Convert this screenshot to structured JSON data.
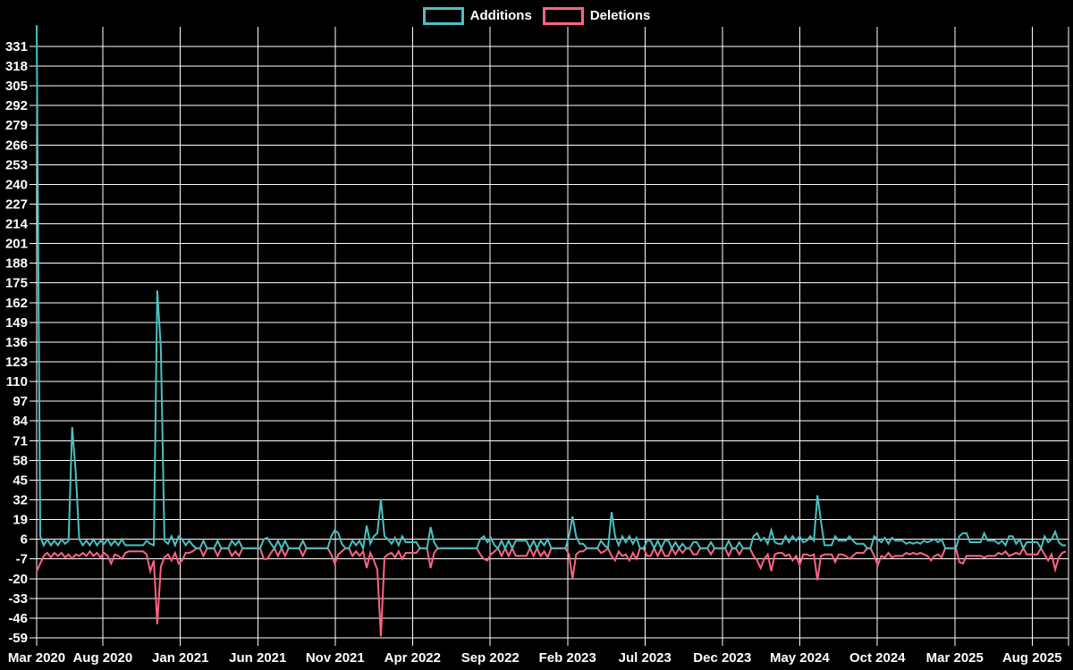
{
  "colors": {
    "background": "#000000",
    "grid": "#ffffff",
    "text": "#ffffff",
    "additions": "#4bc0c0",
    "deletions": "#ff6384"
  },
  "legend": {
    "items": [
      {
        "label": "Additions",
        "color": "#4bc0c0"
      },
      {
        "label": "Deletions",
        "color": "#ff6384"
      }
    ]
  },
  "chart_data": {
    "type": "line",
    "title": "",
    "xlabel": "",
    "ylabel": "",
    "grid": true,
    "legend_position": "top-center",
    "x_unit": "week",
    "weeks": 291,
    "ylim": [
      -59.6,
      344
    ],
    "y_axis": {
      "ticks": [
        331,
        318,
        305,
        292,
        279,
        266,
        253,
        240,
        227,
        214,
        201,
        188,
        175,
        162,
        149,
        136,
        123,
        110,
        97,
        84,
        71,
        58,
        45,
        32,
        19,
        6,
        -7,
        -20,
        -33,
        -46,
        -59
      ],
      "step": 13
    },
    "x_axis": {
      "tick_labels": [
        "Mar 2020",
        "Aug 2020",
        "Jan 2021",
        "Jun 2021",
        "Nov 2021",
        "Apr 2022",
        "Sep 2022",
        "Feb 2023",
        "Jul 2023",
        "Dec 2023",
        "May 2024",
        "Oct 2024",
        "Mar 2025",
        "Aug 2025"
      ],
      "tick_weeks": [
        0,
        18.6,
        40.5,
        62.3,
        84.1,
        105.9,
        127.8,
        149.6,
        171.4,
        193.2,
        215.0,
        236.9,
        258.7,
        280.5
      ]
    },
    "series": [
      {
        "name": "Additions",
        "color": "#4bc0c0",
        "values": [
          345,
          8,
          2,
          6,
          2,
          5,
          2,
          6,
          3,
          5,
          80,
          50,
          6,
          2,
          5,
          2,
          6,
          2,
          5,
          3,
          6,
          2,
          5,
          2,
          6,
          2,
          2,
          2,
          2,
          2,
          2,
          5,
          3,
          2,
          170,
          132,
          5,
          3,
          8,
          2,
          8,
          6,
          2,
          5,
          2,
          0,
          0,
          5,
          0,
          0,
          0,
          5,
          0,
          0,
          0,
          5,
          2,
          5,
          0,
          0,
          0,
          0,
          0,
          0,
          6,
          7,
          3,
          0,
          5,
          0,
          5,
          0,
          0,
          0,
          0,
          5,
          0,
          0,
          0,
          0,
          0,
          0,
          0,
          8,
          12,
          10,
          3,
          0,
          0,
          5,
          2,
          5,
          0,
          15,
          3,
          8,
          10,
          32,
          8,
          6,
          3,
          7,
          2,
          8,
          4,
          4,
          4,
          4,
          0,
          0,
          0,
          14,
          4,
          0,
          0,
          0,
          0,
          0,
          0,
          0,
          0,
          0,
          0,
          0,
          0,
          6,
          8,
          4,
          7,
          2,
          0,
          5,
          0,
          5,
          0,
          5,
          5,
          5,
          5,
          0,
          5,
          0,
          5,
          2,
          6,
          0,
          0,
          0,
          0,
          0,
          8,
          21,
          8,
          3,
          3,
          0,
          0,
          0,
          0,
          5,
          2,
          0,
          24,
          8,
          2,
          8,
          4,
          8,
          3,
          7,
          0,
          0,
          5,
          5,
          0,
          5,
          0,
          5,
          5,
          0,
          4,
          0,
          3,
          0,
          0,
          4,
          4,
          0,
          0,
          0,
          4,
          0,
          0,
          0,
          0,
          5,
          0,
          0,
          4,
          0,
          0,
          0,
          8,
          10,
          5,
          7,
          3,
          12,
          4,
          3,
          3,
          8,
          4,
          8,
          5,
          8,
          4,
          5,
          8,
          5,
          35,
          18,
          2,
          2,
          2,
          8,
          5,
          5,
          5,
          8,
          5,
          3,
          3,
          3,
          0,
          0,
          8,
          6,
          4,
          7,
          3,
          7,
          5,
          5,
          5,
          3,
          4,
          3,
          4,
          3,
          5,
          4,
          5,
          6,
          4,
          6,
          0,
          0,
          0,
          0,
          8,
          10,
          10,
          4,
          4,
          4,
          4,
          10,
          5,
          5,
          5,
          3,
          5,
          2,
          8,
          8,
          3,
          6,
          0,
          4,
          4,
          4,
          4,
          0,
          8,
          4,
          6,
          11,
          4,
          2,
          2
        ]
      },
      {
        "name": "Deletions",
        "color": "#ff6384",
        "values": [
          -15,
          -10,
          -5,
          -3,
          -6,
          -3,
          -5,
          -3,
          -6,
          -4,
          -7,
          -4,
          -5,
          -3,
          -5,
          -2,
          -5,
          -3,
          -6,
          -3,
          -5,
          -10,
          -4,
          -5,
          -7,
          -3,
          -2,
          -2,
          -2,
          -2,
          -2,
          -4,
          -15,
          -8,
          -50,
          -12,
          -6,
          -4,
          -8,
          -3,
          -10,
          -8,
          -3,
          -3,
          -2,
          0,
          0,
          -5,
          0,
          0,
          0,
          -5,
          0,
          0,
          0,
          -5,
          -2,
          -5,
          0,
          0,
          0,
          0,
          0,
          0,
          -7,
          -7,
          -3,
          0,
          -5,
          0,
          -5,
          0,
          0,
          0,
          0,
          -5,
          0,
          0,
          0,
          0,
          0,
          0,
          0,
          -4,
          -10,
          -4,
          -2,
          0,
          0,
          -5,
          -2,
          -5,
          -2,
          -13,
          -3,
          -8,
          -14,
          -58,
          -6,
          -4,
          -3,
          -6,
          -2,
          -7,
          -3,
          -3,
          -3,
          -3,
          0,
          0,
          0,
          -13,
          -3,
          0,
          0,
          0,
          0,
          0,
          0,
          0,
          0,
          0,
          0,
          0,
          0,
          -4,
          -7,
          -8,
          -4,
          -2,
          0,
          -5,
          0,
          -5,
          0,
          -5,
          -5,
          -5,
          -5,
          0,
          -5,
          0,
          -5,
          -2,
          -6,
          0,
          0,
          0,
          0,
          0,
          -4,
          -20,
          -4,
          -2,
          -2,
          0,
          0,
          0,
          0,
          -3,
          -2,
          0,
          -5,
          -8,
          -2,
          -5,
          -4,
          -8,
          -3,
          -7,
          0,
          0,
          -5,
          -5,
          0,
          -5,
          0,
          -5,
          -5,
          0,
          -4,
          0,
          -3,
          0,
          0,
          -4,
          -4,
          0,
          0,
          0,
          -4,
          0,
          0,
          0,
          0,
          -5,
          0,
          0,
          -4,
          0,
          0,
          0,
          -5,
          -8,
          -13,
          -7,
          -4,
          -15,
          -4,
          -3,
          -3,
          -5,
          -4,
          -8,
          -5,
          -11,
          -4,
          -4,
          -5,
          -4,
          -21,
          -5,
          -4,
          -4,
          -4,
          -9,
          -4,
          -4,
          -5,
          -7,
          -5,
          -3,
          -3,
          -3,
          0,
          0,
          -5,
          -11,
          -5,
          -6,
          -3,
          -6,
          -5,
          -5,
          -5,
          -3,
          -4,
          -3,
          -4,
          -3,
          -4,
          -5,
          -8,
          -5,
          -4,
          -6,
          0,
          0,
          0,
          0,
          -9,
          -10,
          -5,
          -5,
          -5,
          -5,
          -5,
          -6,
          -5,
          -5,
          -5,
          -3,
          -4,
          -2,
          -5,
          -4,
          -3,
          -4,
          0,
          -4,
          -4,
          -4,
          -4,
          0,
          -4,
          -8,
          -4,
          -14,
          -6,
          -3,
          -2
        ]
      }
    ]
  }
}
